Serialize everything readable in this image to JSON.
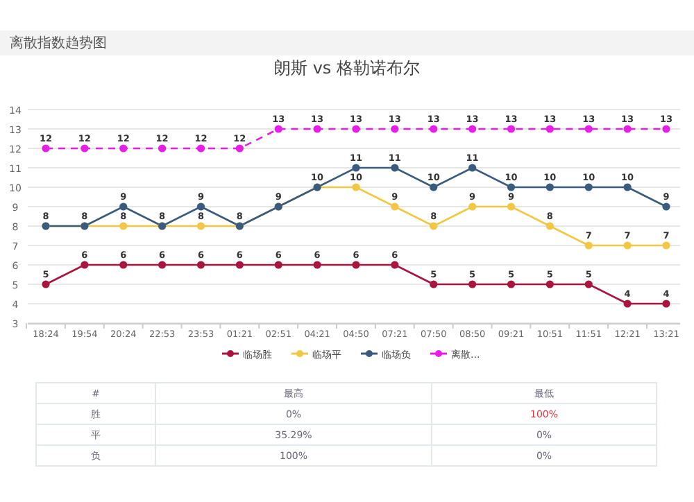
{
  "chart_data": {
    "type": "line",
    "title": "朗斯 vs 格勒诺布尔",
    "categories": [
      "18:24",
      "19:54",
      "20:24",
      "22:53",
      "23:53",
      "01:21",
      "02:51",
      "04:21",
      "04:50",
      "07:21",
      "07:50",
      "08:50",
      "09:21",
      "10:51",
      "11:51",
      "12:21",
      "13:21"
    ],
    "series": [
      {
        "name": "临场胜",
        "color": "#a8163f",
        "values": [
          5,
          6,
          6,
          6,
          6,
          6,
          6,
          6,
          6,
          6,
          5,
          5,
          5,
          5,
          5,
          4,
          4
        ]
      },
      {
        "name": "临场平",
        "color": "#f2c744",
        "values": [
          8,
          8,
          8,
          8,
          8,
          8,
          9,
          10,
          10,
          9,
          8,
          9,
          9,
          8,
          7,
          7,
          7
        ]
      },
      {
        "name": "临场负",
        "color": "#3b5b7d",
        "values": [
          8,
          8,
          9,
          8,
          9,
          8,
          9,
          10,
          11,
          11,
          10,
          11,
          10,
          10,
          10,
          10,
          9
        ],
        "value_labels": [
          null,
          null,
          "9",
          null,
          "9",
          null,
          null,
          null,
          "11",
          "11",
          "10",
          "11",
          "10",
          "10",
          "10",
          "10",
          "9"
        ]
      },
      {
        "name": "离散...",
        "color": "#e61ee6",
        "line_style": "dashed",
        "values": [
          12,
          12,
          12,
          12,
          12,
          12,
          13,
          13,
          13,
          13,
          13,
          13,
          13,
          13,
          13,
          13,
          13
        ]
      }
    ],
    "ylim": [
      3,
      14
    ],
    "yticks": [
      3,
      4,
      5,
      6,
      7,
      8,
      9,
      10,
      11,
      12,
      13,
      14
    ],
    "grid": "y",
    "legend": "bottom",
    "marker": "circle",
    "line_style": "solid",
    "data_labels": true,
    "annotations": [
      "离散指数趋势图",
      "#",
      "最高",
      "最低",
      "胜",
      "0%",
      "100%",
      "平",
      "35.29%",
      "0%",
      "负",
      "100%",
      "0%"
    ]
  }
}
